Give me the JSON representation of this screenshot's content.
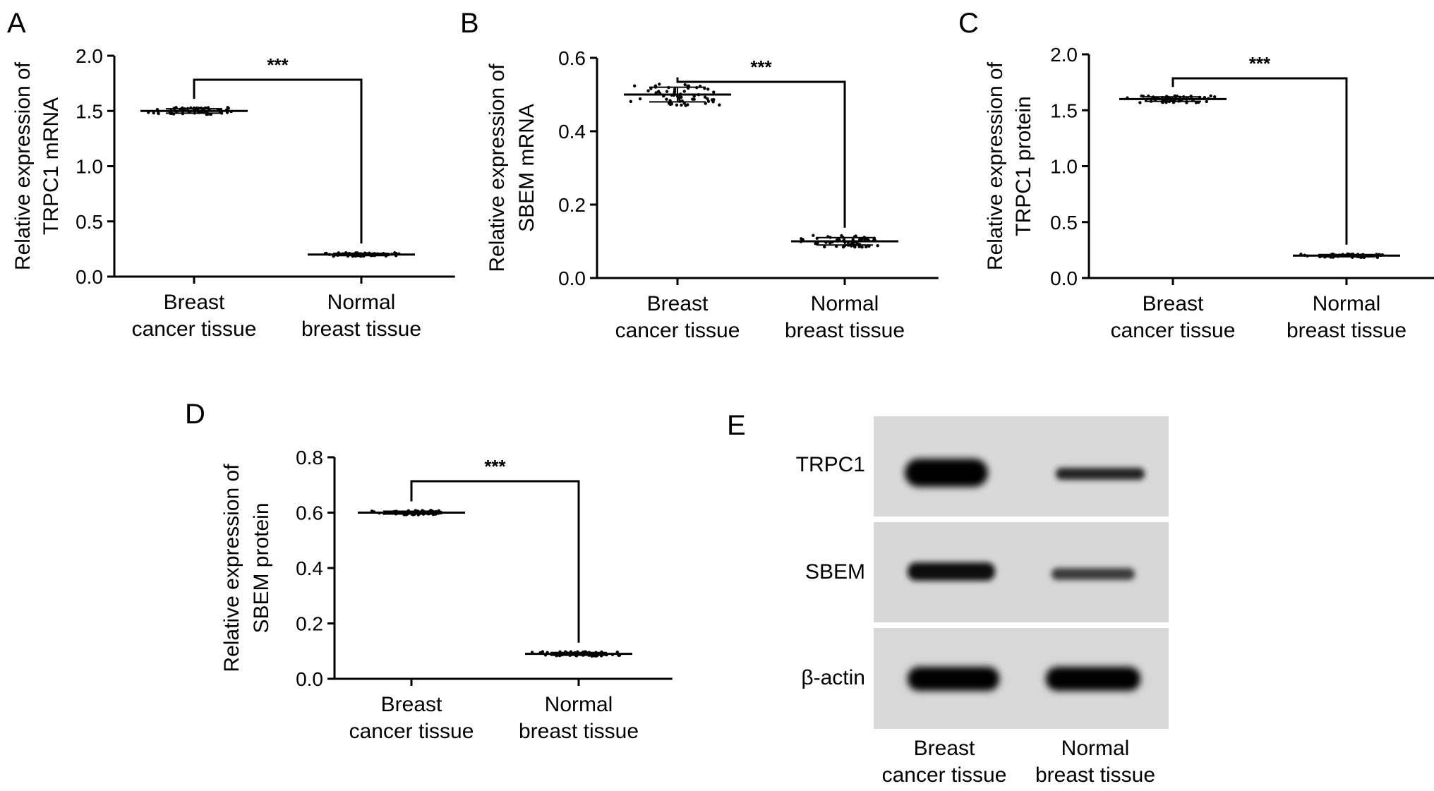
{
  "figure": {
    "panels": [
      "A",
      "B",
      "C",
      "D",
      "E"
    ]
  },
  "chart_data": [
    {
      "panel": "A",
      "type": "scatter",
      "ylabel": "Relative expression of TRPC1 mRNA",
      "ylabel_lines": [
        "Relative expression of",
        "TRPC1 mRNA"
      ],
      "categories": [
        "Breast cancer tissue",
        "Normal breast tissue"
      ],
      "category_lines": [
        [
          "Breast",
          "cancer tissue"
        ],
        [
          "Normal",
          "breast tissue"
        ]
      ],
      "ylim": [
        0,
        2.0
      ],
      "yticks": [
        "0.0",
        "0.5",
        "1.0",
        "1.5",
        "2.0"
      ],
      "means": [
        1.5,
        0.2
      ],
      "sd": [
        0.02,
        0.01
      ],
      "significance": "***"
    },
    {
      "panel": "B",
      "type": "scatter",
      "ylabel": "Relative expression of SBEM mRNA",
      "ylabel_lines": [
        "Relative expression of",
        "SBEM mRNA"
      ],
      "categories": [
        "Breast cancer tissue",
        "Normal breast tissue"
      ],
      "category_lines": [
        [
          "Breast",
          "cancer tissue"
        ],
        [
          "Normal",
          "breast tissue"
        ]
      ],
      "ylim": [
        0,
        0.6
      ],
      "yticks": [
        "0.0",
        "0.2",
        "0.4",
        "0.6"
      ],
      "means": [
        0.5,
        0.1
      ],
      "sd": [
        0.02,
        0.01
      ],
      "significance": "***"
    },
    {
      "panel": "C",
      "type": "scatter",
      "ylabel": "Relative expression of TRPC1 protein",
      "ylabel_lines": [
        "Relative expression of",
        "TRPC1 protein"
      ],
      "categories": [
        "Breast cancer tissue",
        "Normal breast tissue"
      ],
      "category_lines": [
        [
          "Breast",
          "cancer tissue"
        ],
        [
          "Normal",
          "breast tissue"
        ]
      ],
      "ylim": [
        0,
        2.0
      ],
      "yticks": [
        "0.0",
        "0.5",
        "1.0",
        "1.5",
        "2.0"
      ],
      "means": [
        1.6,
        0.2
      ],
      "sd": [
        0.02,
        0.01
      ],
      "significance": "***"
    },
    {
      "panel": "D",
      "type": "scatter",
      "ylabel": "Relative expression of SBEM protein",
      "ylabel_lines": [
        "Relative expression of",
        "SBEM  protein"
      ],
      "categories": [
        "Breast cancer tissue",
        "Normal breast tissue"
      ],
      "category_lines": [
        [
          "Breast",
          "cancer tissue"
        ],
        [
          "Normal",
          "breast tissue"
        ]
      ],
      "ylim": [
        0,
        0.8
      ],
      "yticks": [
        "0.0",
        "0.2",
        "0.4",
        "0.6",
        "0.8"
      ],
      "means": [
        0.6,
        0.09
      ],
      "sd": [
        0.005,
        0.005
      ],
      "significance": "***"
    }
  ],
  "blot": {
    "panel": "E",
    "rows": [
      "TRPC1",
      "SBEM",
      "β-actin"
    ],
    "lanes": [
      [
        "Breast",
        "cancer tissue"
      ],
      [
        "Normal",
        "breast tissue"
      ]
    ],
    "intensity": [
      [
        1.0,
        0.55
      ],
      [
        0.85,
        0.5
      ],
      [
        1.0,
        1.0
      ]
    ]
  }
}
